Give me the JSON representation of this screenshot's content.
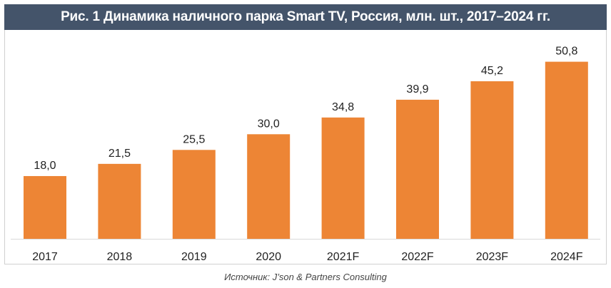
{
  "chart_data": {
    "type": "bar",
    "title": "Рис. 1 Динамика наличного парка Smart TV, Россия, млн. шт., 2017–2024 гг.",
    "categories": [
      "2017",
      "2018",
      "2019",
      "2020",
      "2021F",
      "2022F",
      "2023F",
      "2024F"
    ],
    "values": [
      18.0,
      21.5,
      25.5,
      30.0,
      34.8,
      39.9,
      45.2,
      50.8
    ],
    "value_labels": [
      "18,0",
      "21,5",
      "25,5",
      "30,0",
      "34,8",
      "39,9",
      "45,2",
      "50,8"
    ],
    "xlabel": "",
    "ylabel": "",
    "ylim": [
      0,
      55
    ],
    "grid": false,
    "bar_color": "#ed8535",
    "header_color": "#44546a"
  },
  "source": "Источник: J’son & Partners Consulting"
}
